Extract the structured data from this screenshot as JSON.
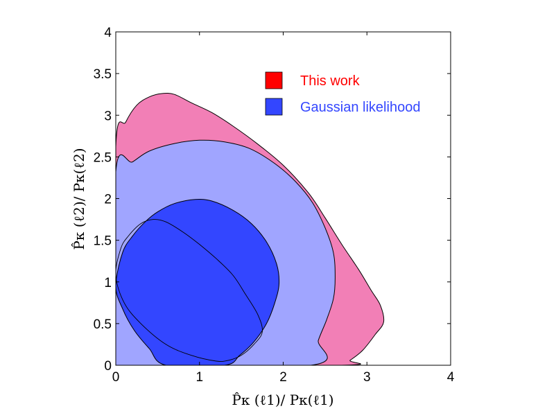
{
  "chart_data": {
    "type": "area",
    "xlabel": "P̂κ (ℓ1)/ Pκ(ℓ1)",
    "ylabel": "P̂κ (ℓ2)/ Pκ(ℓ2)",
    "xlim": [
      0,
      4
    ],
    "ylim": [
      0,
      4
    ],
    "x_ticks": [
      "0",
      "1",
      "2",
      "3",
      "4"
    ],
    "y_ticks": [
      "0",
      "0.5",
      "1",
      "1.5",
      "2",
      "2.5",
      "3",
      "3.5",
      "4"
    ],
    "grid": false,
    "legend_position": "top-right",
    "series": [
      {
        "name": "This work",
        "legend_color": "#ff0000",
        "fill_color": "#f27fb6",
        "level": "outer",
        "points": [
          [
            0.0,
            2.62
          ],
          [
            0.12,
            2.92
          ],
          [
            0.25,
            3.12
          ],
          [
            0.4,
            3.22
          ],
          [
            0.55,
            3.26
          ],
          [
            0.7,
            3.25
          ],
          [
            0.9,
            3.15
          ],
          [
            1.15,
            3.03
          ],
          [
            1.4,
            2.87
          ],
          [
            1.7,
            2.65
          ],
          [
            2.0,
            2.4
          ],
          [
            2.3,
            2.07
          ],
          [
            2.5,
            1.77
          ],
          [
            2.7,
            1.45
          ],
          [
            2.9,
            1.15
          ],
          [
            3.05,
            0.9
          ],
          [
            3.16,
            0.72
          ],
          [
            3.2,
            0.52
          ],
          [
            3.1,
            0.37
          ],
          [
            2.95,
            0.18
          ],
          [
            2.8,
            0.06
          ],
          [
            2.7,
            0.0
          ],
          [
            0.0,
            0.0
          ]
        ]
      },
      {
        "name": "Gaussian likelihood",
        "legend_color": "#3346ff",
        "fill_color": "#a0a5ff",
        "level": "outer",
        "points": [
          [
            0.0,
            2.32
          ],
          [
            0.2,
            2.44
          ],
          [
            0.4,
            2.57
          ],
          [
            0.7,
            2.66
          ],
          [
            1.0,
            2.7
          ],
          [
            1.3,
            2.68
          ],
          [
            1.6,
            2.6
          ],
          [
            1.9,
            2.42
          ],
          [
            2.15,
            2.2
          ],
          [
            2.35,
            1.95
          ],
          [
            2.5,
            1.65
          ],
          [
            2.6,
            1.35
          ],
          [
            2.62,
            1.05
          ],
          [
            2.6,
            0.8
          ],
          [
            2.52,
            0.55
          ],
          [
            2.42,
            0.3
          ],
          [
            2.33,
            0.0
          ],
          [
            0.0,
            0.0
          ]
        ]
      },
      {
        "name": "Gaussian likelihood",
        "fill_color": "#3346ff",
        "level": "inner",
        "points": [
          [
            0.0,
            0.95
          ],
          [
            0.08,
            1.35
          ],
          [
            0.2,
            1.55
          ],
          [
            0.35,
            1.72
          ],
          [
            0.5,
            1.84
          ],
          [
            0.7,
            1.94
          ],
          [
            0.95,
            1.99
          ],
          [
            1.15,
            1.97
          ],
          [
            1.4,
            1.86
          ],
          [
            1.62,
            1.7
          ],
          [
            1.8,
            1.48
          ],
          [
            1.92,
            1.22
          ],
          [
            1.95,
            0.98
          ],
          [
            1.9,
            0.75
          ],
          [
            1.8,
            0.5
          ],
          [
            1.65,
            0.28
          ],
          [
            1.48,
            0.12
          ],
          [
            1.3,
            0.0
          ],
          [
            0.6,
            0.0
          ],
          [
            0.4,
            0.2
          ],
          [
            0.22,
            0.42
          ],
          [
            0.08,
            0.68
          ]
        ]
      },
      {
        "name": "This work",
        "level": "inner",
        "outline_only": true,
        "points": [
          [
            0.0,
            1.08
          ],
          [
            0.06,
            1.4
          ],
          [
            0.15,
            1.55
          ],
          [
            0.3,
            1.7
          ],
          [
            0.45,
            1.75
          ],
          [
            0.6,
            1.72
          ],
          [
            0.8,
            1.6
          ],
          [
            1.0,
            1.45
          ],
          [
            1.2,
            1.28
          ],
          [
            1.4,
            1.08
          ],
          [
            1.55,
            0.85
          ],
          [
            1.7,
            0.6
          ],
          [
            1.75,
            0.4
          ],
          [
            1.65,
            0.25
          ],
          [
            1.5,
            0.12
          ],
          [
            1.35,
            0.06
          ],
          [
            1.2,
            0.05
          ],
          [
            0.9,
            0.12
          ],
          [
            0.6,
            0.25
          ],
          [
            0.3,
            0.5
          ],
          [
            0.1,
            0.75
          ]
        ]
      }
    ]
  }
}
